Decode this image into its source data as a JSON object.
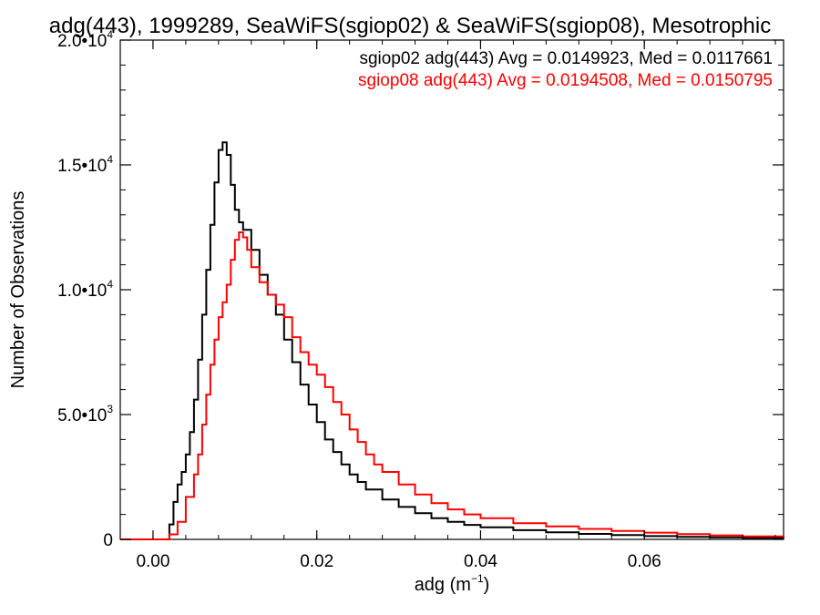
{
  "chart_data": {
    "type": "line",
    "title": "adg(443), 1999289, SeaWiFS(sgiop02) & SeaWiFS(sgiop08), Mesotrophic",
    "xlabel_base": "adg (m",
    "xlabel_sup": "−1",
    "xlabel_close": ")",
    "ylabel": "Number of Observations",
    "xlim": [
      -0.004,
      0.077
    ],
    "ylim": [
      0,
      20000
    ],
    "x_ticks": [
      {
        "value": 0.0,
        "label": "0.00"
      },
      {
        "value": 0.02,
        "label": "0.02"
      },
      {
        "value": 0.04,
        "label": "0.04"
      },
      {
        "value": 0.06,
        "label": "0.06"
      }
    ],
    "y_ticks": [
      {
        "value": 0,
        "mant": "0",
        "exp": ""
      },
      {
        "value": 5000,
        "mant": "5.0•10",
        "exp": "3"
      },
      {
        "value": 10000,
        "mant": "1.0•10",
        "exp": "4"
      },
      {
        "value": 15000,
        "mant": "1.5•10",
        "exp": "4"
      },
      {
        "value": 20000,
        "mant": "2.0•10",
        "exp": "4"
      }
    ],
    "annotations": [
      "sgiop02 adg(443) Avg = 0.0149923, Med = 0.0117661",
      "sgiop08 adg(443) Avg = 0.0194508, Med = 0.0150795"
    ],
    "series": [
      {
        "name": "sgiop02",
        "color": "#000000",
        "points": [
          [
            -0.004,
            0
          ],
          [
            0.0015,
            0
          ],
          [
            0.002,
            600
          ],
          [
            0.0025,
            1500
          ],
          [
            0.003,
            2200
          ],
          [
            0.0035,
            2700
          ],
          [
            0.004,
            3400
          ],
          [
            0.0045,
            4300
          ],
          [
            0.005,
            5600
          ],
          [
            0.0055,
            7200
          ],
          [
            0.006,
            9000
          ],
          [
            0.0065,
            10800
          ],
          [
            0.007,
            12600
          ],
          [
            0.0075,
            14300
          ],
          [
            0.008,
            15600
          ],
          [
            0.0085,
            15900
          ],
          [
            0.009,
            15400
          ],
          [
            0.0095,
            14200
          ],
          [
            0.01,
            13200
          ],
          [
            0.0105,
            12700
          ],
          [
            0.011,
            12400
          ],
          [
            0.012,
            11600
          ],
          [
            0.013,
            10600
          ],
          [
            0.014,
            9800
          ],
          [
            0.015,
            9000
          ],
          [
            0.016,
            8000
          ],
          [
            0.017,
            7100
          ],
          [
            0.018,
            6200
          ],
          [
            0.019,
            5400
          ],
          [
            0.02,
            4700
          ],
          [
            0.021,
            4000
          ],
          [
            0.022,
            3500
          ],
          [
            0.023,
            3000
          ],
          [
            0.024,
            2600
          ],
          [
            0.025,
            2300
          ],
          [
            0.026,
            2000
          ],
          [
            0.028,
            1600
          ],
          [
            0.03,
            1300
          ],
          [
            0.032,
            1050
          ],
          [
            0.034,
            850
          ],
          [
            0.036,
            700
          ],
          [
            0.038,
            580
          ],
          [
            0.04,
            480
          ],
          [
            0.044,
            370
          ],
          [
            0.048,
            280
          ],
          [
            0.052,
            220
          ],
          [
            0.056,
            170
          ],
          [
            0.06,
            130
          ],
          [
            0.064,
            100
          ],
          [
            0.068,
            80
          ],
          [
            0.072,
            60
          ],
          [
            0.077,
            45
          ]
        ]
      },
      {
        "name": "sgiop08",
        "color": "#ff0000",
        "points": [
          [
            -0.004,
            0
          ],
          [
            0.0015,
            0
          ],
          [
            0.002,
            200
          ],
          [
            0.003,
            700
          ],
          [
            0.004,
            1700
          ],
          [
            0.005,
            2600
          ],
          [
            0.0055,
            3400
          ],
          [
            0.006,
            4600
          ],
          [
            0.0065,
            5800
          ],
          [
            0.007,
            7000
          ],
          [
            0.0075,
            8000
          ],
          [
            0.008,
            8900
          ],
          [
            0.0085,
            9500
          ],
          [
            0.009,
            10200
          ],
          [
            0.0095,
            11200
          ],
          [
            0.01,
            12000
          ],
          [
            0.0105,
            12300
          ],
          [
            0.011,
            12100
          ],
          [
            0.0115,
            11600
          ],
          [
            0.012,
            10900
          ],
          [
            0.013,
            10300
          ],
          [
            0.014,
            9800
          ],
          [
            0.015,
            9400
          ],
          [
            0.016,
            8900
          ],
          [
            0.017,
            8100
          ],
          [
            0.018,
            7500
          ],
          [
            0.019,
            7000
          ],
          [
            0.02,
            6600
          ],
          [
            0.021,
            6100
          ],
          [
            0.022,
            5500
          ],
          [
            0.023,
            5000
          ],
          [
            0.024,
            4400
          ],
          [
            0.025,
            3900
          ],
          [
            0.026,
            3400
          ],
          [
            0.027,
            3000
          ],
          [
            0.028,
            2700
          ],
          [
            0.03,
            2200
          ],
          [
            0.032,
            1800
          ],
          [
            0.034,
            1450
          ],
          [
            0.036,
            1200
          ],
          [
            0.038,
            1000
          ],
          [
            0.04,
            850
          ],
          [
            0.044,
            650
          ],
          [
            0.048,
            520
          ],
          [
            0.052,
            420
          ],
          [
            0.056,
            340
          ],
          [
            0.06,
            270
          ],
          [
            0.064,
            210
          ],
          [
            0.068,
            160
          ],
          [
            0.072,
            120
          ],
          [
            0.077,
            80
          ]
        ]
      }
    ]
  }
}
